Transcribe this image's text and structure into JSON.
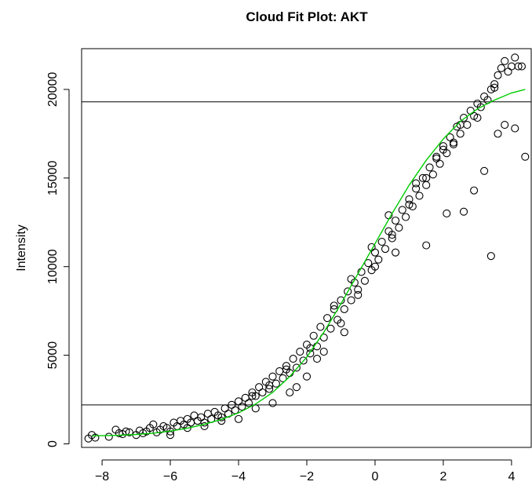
{
  "chart_data": {
    "type": "scatter",
    "title": "Cloud Fit Plot:  AKT",
    "xlabel": "",
    "ylabel": "Intensity",
    "xlim": [
      -8.6,
      4.6
    ],
    "ylim": [
      -200,
      22300
    ],
    "x_ticks": [
      -8,
      -6,
      -4,
      -2,
      0,
      2,
      4
    ],
    "x_tick_labels": [
      "−8",
      "−6",
      "−4",
      "−2",
      "0",
      "2",
      "4"
    ],
    "y_ticks": [
      0,
      5000,
      10000,
      15000,
      20000
    ],
    "y_tick_labels": [
      "0",
      "5000",
      "10000",
      "15000",
      "20000"
    ],
    "reference_lines": [
      2200,
      19300
    ],
    "grid": false,
    "colors": {
      "points": "#000000",
      "fit_curve": "#00cc00",
      "reference_line": "#000000",
      "frame": "#000000"
    },
    "fit_curve": {
      "x": [
        -8.3,
        -7.5,
        -7.0,
        -6.5,
        -6.0,
        -5.5,
        -5.0,
        -4.5,
        -4.0,
        -3.5,
        -3.0,
        -2.5,
        -2.0,
        -1.5,
        -1.0,
        -0.5,
        0.0,
        0.5,
        1.0,
        1.5,
        2.0,
        2.5,
        3.0,
        3.5,
        4.0,
        4.4
      ],
      "y": [
        450,
        480,
        530,
        600,
        720,
        880,
        1100,
        1380,
        1750,
        2250,
        2900,
        3800,
        4900,
        6300,
        7900,
        9600,
        11300,
        13000,
        14600,
        16000,
        17200,
        18200,
        18900,
        19400,
        19800,
        20000
      ]
    },
    "points": {
      "x": [
        -8.4,
        -8.3,
        -8.2,
        -7.8,
        -7.6,
        -7.5,
        -7.4,
        -7.3,
        -7.2,
        -7.0,
        -6.9,
        -6.8,
        -6.7,
        -6.6,
        -6.5,
        -6.4,
        -6.3,
        -6.2,
        -6.1,
        -6.0,
        -5.9,
        -5.8,
        -5.7,
        -5.6,
        -5.5,
        -5.4,
        -5.3,
        -5.2,
        -5.1,
        -5.0,
        -4.9,
        -4.8,
        -4.7,
        -4.6,
        -4.5,
        -4.4,
        -4.3,
        -4.2,
        -4.1,
        -4.0,
        -3.9,
        -3.8,
        -3.7,
        -3.6,
        -3.5,
        -3.4,
        -3.3,
        -3.2,
        -3.1,
        -3.0,
        -2.9,
        -2.8,
        -2.7,
        -2.6,
        -2.5,
        -2.4,
        -2.3,
        -2.2,
        -2.1,
        -2.0,
        -1.9,
        -1.8,
        -1.7,
        -1.6,
        -1.5,
        -1.4,
        -1.3,
        -1.2,
        -1.1,
        -1.0,
        -0.9,
        -0.8,
        -0.7,
        -0.6,
        -0.5,
        -0.4,
        -0.3,
        -0.2,
        -0.1,
        0.0,
        0.1,
        0.2,
        0.3,
        0.4,
        0.5,
        0.6,
        0.7,
        0.8,
        0.9,
        1.0,
        1.1,
        1.2,
        1.3,
        1.4,
        1.5,
        1.6,
        1.7,
        1.8,
        1.9,
        2.0,
        2.1,
        2.2,
        2.3,
        2.4,
        2.5,
        2.6,
        2.7,
        2.8,
        2.9,
        3.0,
        3.1,
        3.2,
        3.3,
        3.4,
        3.5,
        3.6,
        3.7,
        3.8,
        3.9,
        4.0,
        4.1,
        4.2,
        4.3,
        4.4,
        -6.0,
        -5.5,
        -5.0,
        -4.5,
        -4.0,
        -3.5,
        -3.0,
        -2.5,
        -2.0,
        -1.5,
        -1.0,
        -0.5,
        0.0,
        0.5,
        1.0,
        1.5,
        2.0,
        2.5,
        3.0,
        3.5,
        -3.6,
        -3.1,
        -2.6,
        -1.9,
        -1.2,
        -0.7,
        -0.1,
        0.4,
        1.2,
        1.8,
        2.3,
        2.9,
        3.4,
        3.6,
        3.8,
        4.1,
        -2.3,
        -1.7,
        -0.9,
        0.6,
        1.5,
        2.1,
        2.6,
        3.2
      ],
      "y": [
        300,
        500,
        350,
        400,
        800,
        600,
        550,
        700,
        650,
        500,
        750,
        600,
        700,
        900,
        1100,
        650,
        800,
        1000,
        900,
        700,
        1200,
        1000,
        1300,
        1100,
        1400,
        1200,
        1600,
        1300,
        1500,
        1200,
        1700,
        1400,
        1800,
        1600,
        1500,
        2000,
        1700,
        2200,
        1900,
        2400,
        2100,
        2600,
        2300,
        2900,
        2700,
        3200,
        2900,
        3500,
        3100,
        3800,
        3400,
        4100,
        3700,
        4400,
        4000,
        4800,
        4300,
        5200,
        4700,
        5600,
        5100,
        6100,
        5500,
        6600,
        6000,
        7100,
        6500,
        7600,
        7000,
        8100,
        7600,
        8600,
        8100,
        9100,
        8700,
        9700,
        9200,
        10200,
        9800,
        10800,
        10400,
        11400,
        11000,
        12000,
        11600,
        12600,
        12200,
        13200,
        12800,
        13800,
        13400,
        14400,
        14000,
        15000,
        14600,
        15600,
        15200,
        16200,
        15800,
        16800,
        16400,
        17300,
        16900,
        17900,
        17500,
        18400,
        18000,
        18800,
        18500,
        19200,
        19000,
        19600,
        19400,
        20000,
        20300,
        20800,
        21200,
        21600,
        21000,
        21300,
        21800,
        21300,
        21300,
        16200,
        500,
        900,
        1000,
        1300,
        1400,
        2000,
        2300,
        2900,
        3800,
        5200,
        6800,
        8400,
        10000,
        11800,
        13500,
        15000,
        16600,
        18000,
        18400,
        20100,
        2700,
        3300,
        4200,
        5400,
        7800,
        9300,
        11100,
        12900,
        14700,
        16100,
        17000,
        14300,
        10600,
        17500,
        18000,
        17800,
        3200,
        4800,
        6300,
        10800,
        11200,
        13000,
        13100,
        15400
      ]
    }
  }
}
